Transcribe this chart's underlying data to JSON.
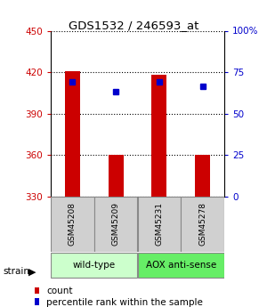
{
  "title": "GDS1532 / 246593_at",
  "samples": [
    "GSM45208",
    "GSM45209",
    "GSM45231",
    "GSM45278"
  ],
  "bar_bottoms": [
    330,
    330,
    330,
    330
  ],
  "bar_tops": [
    421,
    360,
    418,
    360
  ],
  "bar_color": "#cc0000",
  "dot_values": [
    413,
    406,
    413,
    410
  ],
  "dot_color": "#0000cc",
  "ylim_left": [
    330,
    450
  ],
  "ylim_right": [
    0,
    100
  ],
  "yticks_left": [
    330,
    360,
    390,
    420,
    450
  ],
  "yticks_right": [
    0,
    25,
    50,
    75,
    100
  ],
  "yticklabels_right": [
    "0",
    "25",
    "50",
    "75",
    "100%"
  ],
  "left_tick_color": "#cc0000",
  "right_tick_color": "#0000cc",
  "group_labels": [
    "wild-type",
    "AOX anti-sense"
  ],
  "group_colors": [
    "#ccffcc",
    "#66ee66"
  ],
  "group_ranges": [
    [
      0,
      2
    ],
    [
      2,
      4
    ]
  ],
  "legend_count_color": "#cc0000",
  "legend_dot_color": "#0000cc",
  "strain_label": "strain",
  "bar_width": 0.35
}
